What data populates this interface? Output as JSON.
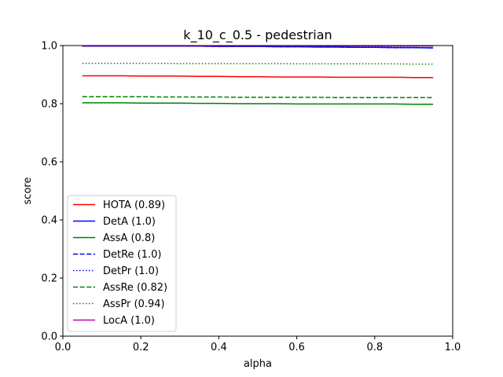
{
  "chart_data": {
    "type": "line",
    "title": "k_10_c_0.5 - pedestrian",
    "xlabel": "alpha",
    "ylabel": "score",
    "xlim": [
      0.0,
      1.0
    ],
    "ylim": [
      0.0,
      1.0
    ],
    "xticks": [
      "0.0",
      "0.2",
      "0.4",
      "0.6",
      "0.8",
      "1.0"
    ],
    "yticks": [
      "0.0",
      "0.2",
      "0.4",
      "0.6",
      "0.8",
      "1.0"
    ],
    "grid": false,
    "legend_position": "lower-left",
    "x": [
      0.05,
      0.1,
      0.15,
      0.2,
      0.25,
      0.3,
      0.35,
      0.4,
      0.45,
      0.5,
      0.55,
      0.6,
      0.65,
      0.7,
      0.75,
      0.8,
      0.85,
      0.9,
      0.95
    ],
    "series": [
      {
        "name": "HOTA (0.89)",
        "color": "#ff0000",
        "dash": "solid",
        "values": [
          0.896,
          0.896,
          0.896,
          0.895,
          0.895,
          0.895,
          0.894,
          0.894,
          0.893,
          0.893,
          0.892,
          0.892,
          0.892,
          0.891,
          0.891,
          0.891,
          0.891,
          0.89,
          0.89
        ]
      },
      {
        "name": "DetA (1.0)",
        "color": "#0000ff",
        "dash": "solid",
        "values": [
          0.998,
          0.998,
          0.998,
          0.998,
          0.998,
          0.998,
          0.998,
          0.997,
          0.997,
          0.997,
          0.996,
          0.996,
          0.995,
          0.995,
          0.994,
          0.994,
          0.993,
          0.993,
          0.992
        ]
      },
      {
        "name": "AssA (0.8)",
        "color": "#008000",
        "dash": "solid",
        "values": [
          0.803,
          0.803,
          0.803,
          0.802,
          0.802,
          0.802,
          0.801,
          0.801,
          0.8,
          0.8,
          0.8,
          0.799,
          0.799,
          0.799,
          0.799,
          0.799,
          0.799,
          0.798,
          0.798
        ]
      },
      {
        "name": "DetRe (1.0)",
        "color": "#0000ff",
        "dash": "dashed",
        "values": [
          0.998,
          0.998,
          0.998,
          0.998,
          0.998,
          0.998,
          0.998,
          0.997,
          0.997,
          0.997,
          0.996,
          0.996,
          0.995,
          0.995,
          0.994,
          0.994,
          0.993,
          0.993,
          0.992
        ]
      },
      {
        "name": "DetPr (1.0)",
        "color": "#0000ff",
        "dash": "dotted",
        "values": [
          0.999,
          0.999,
          0.999,
          0.999,
          0.999,
          0.999,
          0.999,
          0.999,
          0.999,
          0.999,
          0.999,
          0.999,
          0.998,
          0.998,
          0.998,
          0.998,
          0.998,
          0.998,
          0.998
        ]
      },
      {
        "name": "AssRe (0.82)",
        "color": "#008000",
        "dash": "dashed",
        "values": [
          0.824,
          0.824,
          0.824,
          0.824,
          0.823,
          0.823,
          0.823,
          0.823,
          0.822,
          0.822,
          0.822,
          0.822,
          0.822,
          0.821,
          0.821,
          0.821,
          0.821,
          0.821,
          0.821
        ]
      },
      {
        "name": "AssPr (0.94)",
        "color": "#008000",
        "dash": "dotted",
        "values": [
          0.939,
          0.939,
          0.939,
          0.939,
          0.939,
          0.938,
          0.938,
          0.938,
          0.938,
          0.938,
          0.938,
          0.937,
          0.937,
          0.937,
          0.937,
          0.937,
          0.937,
          0.936,
          0.936
        ]
      },
      {
        "name": "LocA (1.0)",
        "color": "#bf00bf",
        "dash": "solid",
        "values": [
          0.999,
          0.999,
          0.999,
          0.999,
          0.999,
          0.999,
          0.999,
          0.999,
          0.999,
          0.999,
          0.999,
          0.999,
          0.999,
          0.999,
          0.999,
          0.999,
          0.999,
          0.999,
          0.999
        ]
      }
    ]
  }
}
